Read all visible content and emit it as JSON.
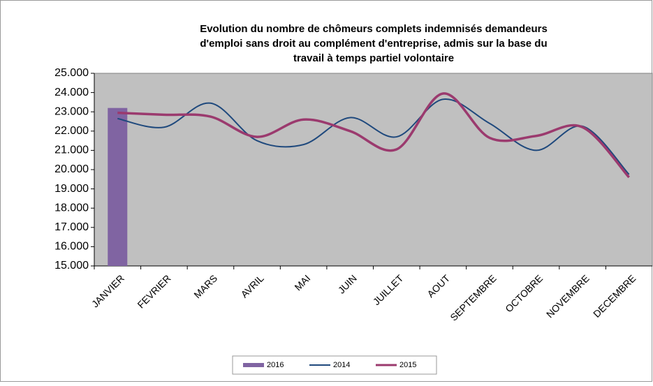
{
  "chart_data": {
    "type": "combo",
    "title": [
      "Evolution du nombre de chômeurs complets indemnisés demandeurs",
      "d'emploi sans droit au complément d'entreprise, admis sur la base du",
      "travail à temps partiel volontaire"
    ],
    "categories": [
      "JANVIER",
      "FEVRIER",
      "MARS",
      "AVRIL",
      "MAI",
      "JUIN",
      "JUILLET",
      "AOUT",
      "SEPTEMBRE",
      "OCTOBRE",
      "NOVEMBRE",
      "DECEMBRE"
    ],
    "series": [
      {
        "name": "2016",
        "type": "bar",
        "color": "#8064a2",
        "values": [
          23200,
          null,
          null,
          null,
          null,
          null,
          null,
          null,
          null,
          null,
          null,
          null
        ]
      },
      {
        "name": "2014",
        "type": "line",
        "color": "#1f497d",
        "values": [
          22650,
          22200,
          23450,
          21500,
          21300,
          22700,
          21700,
          23650,
          22400,
          21000,
          22250,
          19750
        ]
      },
      {
        "name": "2015",
        "type": "line",
        "color": "#9b3a6e",
        "values": [
          22950,
          22850,
          22750,
          21700,
          22600,
          22000,
          21050,
          23950,
          21650,
          21750,
          22200,
          19600
        ]
      }
    ],
    "ylim": [
      15000,
      25000
    ],
    "yticks": [
      {
        "value": 15000,
        "label": "15.000"
      },
      {
        "value": 16000,
        "label": "16.000"
      },
      {
        "value": 17000,
        "label": "17.000"
      },
      {
        "value": 18000,
        "label": "18.000"
      },
      {
        "value": 19000,
        "label": "19.000"
      },
      {
        "value": 20000,
        "label": "20.000"
      },
      {
        "value": 21000,
        "label": "21.000"
      },
      {
        "value": 22000,
        "label": "22.000"
      },
      {
        "value": 23000,
        "label": "23.000"
      },
      {
        "value": 24000,
        "label": "24.000"
      },
      {
        "value": 25000,
        "label": "25.000"
      }
    ],
    "legend": "bottom"
  }
}
